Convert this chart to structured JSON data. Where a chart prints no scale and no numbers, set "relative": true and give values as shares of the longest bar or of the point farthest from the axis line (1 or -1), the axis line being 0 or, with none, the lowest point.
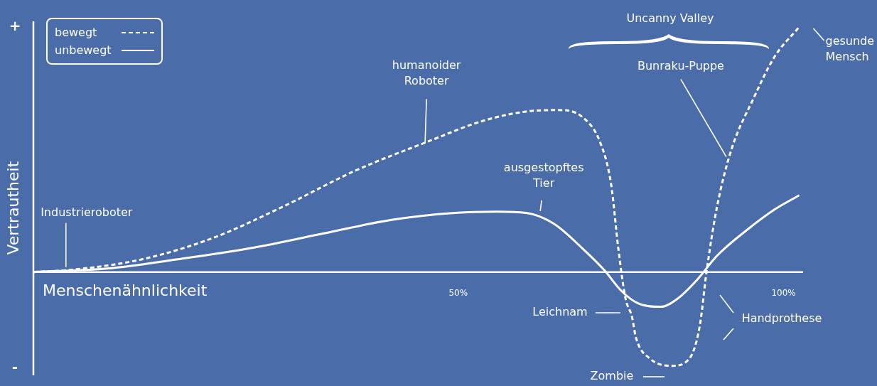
{
  "chart_data": {
    "type": "line",
    "xlabel": "Menschenähnlichkeit",
    "ylabel": "Vertrautheit",
    "relative": true,
    "legend": "top left",
    "marker": "none",
    "xlim": [
      -15.3,
      103
    ],
    "xticks": [
      {
        "value": 50,
        "label": "50%"
      },
      {
        "value": 100,
        "label": "100%"
      }
    ],
    "annotations": [
      "+",
      "-",
      {
        "text": "Industrieroboter",
        "x": -10.3,
        "y": 0.02
      },
      {
        "text": "humanoider\nRoboter",
        "x": 44.9,
        "y": 0.52
      },
      {
        "text": "ausgestopftes\nTier",
        "x": 62.6,
        "y": 0.24
      },
      {
        "text": "Bunraku-Puppe",
        "x": 91.2,
        "y": 0.47
      },
      {
        "text": "gesunde\nMensch",
        "x": 102.4,
        "y": 1.0
      },
      "Leichnam",
      "Zombie",
      "Handprothese",
      "Uncanny Valley"
    ],
    "series": [
      {
        "name": "bewegt",
        "color": "#ffffff",
        "line_style": "dashed",
        "x": [
          -15.3,
          -9.5,
          1.4,
          12.3,
          23.3,
          34.2,
          45.1,
          53.8,
          60.4,
          65.3,
          69.1,
          71.8,
          73.5,
          74.6,
          75.7,
          76.7,
          77.3,
          79.5,
          82.8,
          85.5,
          87.1,
          88.2,
          89.8,
          92.0,
          95.3,
          98.6,
          102.4
        ],
        "values": [
          0,
          0.009,
          0.052,
          0.139,
          0.27,
          0.414,
          0.53,
          0.617,
          0.655,
          0.661,
          0.632,
          0.53,
          0.357,
          0.096,
          -0.107,
          -0.183,
          -0.267,
          -0.354,
          -0.383,
          -0.354,
          -0.223,
          0.009,
          0.27,
          0.501,
          0.704,
          0.878,
          1.0
        ]
      },
      {
        "name": "unbewegt",
        "color": "#ffffff",
        "line_style": "solid",
        "x": [
          -15.3,
          -4.0,
          6.9,
          17.8,
          28.7,
          39.6,
          49.5,
          56.0,
          60.4,
          64.7,
          69.1,
          72.4,
          75.1,
          77.8,
          81.1,
          83.8,
          86.6,
          89.8,
          94.2,
          98.6,
          102.4
        ],
        "values": [
          0,
          0.014,
          0.052,
          0.096,
          0.154,
          0.212,
          0.241,
          0.246,
          0.241,
          0.197,
          0.096,
          0.009,
          -0.078,
          -0.13,
          -0.142,
          -0.107,
          -0.035,
          0.067,
          0.168,
          0.255,
          0.313
        ]
      }
    ]
  }
}
